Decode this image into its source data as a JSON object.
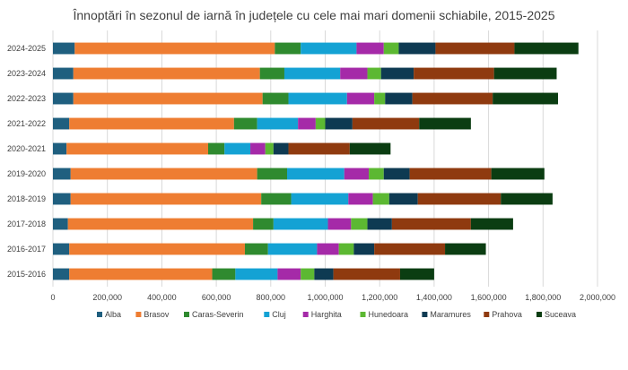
{
  "chart_data": {
    "type": "bar",
    "orientation": "horizontal",
    "stacked": true,
    "title": "Înnoptări în sezonul de iarnă în județele cu cele mai mari domenii schiabile, 2015-2025",
    "xlabel": "",
    "ylabel": "",
    "xlim": [
      0,
      2000000
    ],
    "xticks": [
      "0",
      "200,000",
      "400,000",
      "600,000",
      "800,000",
      "1,000,000",
      "1,200,000",
      "1,400,000",
      "1,600,000",
      "1,800,000",
      "2,000,000"
    ],
    "grid": "vertical",
    "legend_position": "bottom",
    "categories": [
      "2024-2025",
      "2023-2024",
      "2022-2023",
      "2021-2022",
      "2020-2021",
      "2019-2020",
      "2018-2019",
      "2017-2018",
      "2016-2017",
      "2015-2016"
    ],
    "series": [
      {
        "name": "Alba",
        "color": "#1f5f7f",
        "values": [
          80000,
          75000,
          75000,
          60000,
          50000,
          65000,
          65000,
          55000,
          60000,
          60000
        ]
      },
      {
        "name": "Brasov",
        "color": "#ee7d32",
        "values": [
          735000,
          685000,
          695000,
          605000,
          520000,
          685000,
          700000,
          680000,
          645000,
          525000
        ]
      },
      {
        "name": "Caras-Severin",
        "color": "#2f8a2f",
        "values": [
          95000,
          90000,
          95000,
          85000,
          60000,
          110000,
          110000,
          75000,
          85000,
          85000
        ]
      },
      {
        "name": "Cluj",
        "color": "#14a2d4",
        "values": [
          205000,
          205000,
          215000,
          150000,
          95000,
          210000,
          210000,
          200000,
          180000,
          155000
        ]
      },
      {
        "name": "Harghita",
        "color": "#a52aa8",
        "values": [
          100000,
          100000,
          100000,
          65000,
          55000,
          90000,
          90000,
          85000,
          80000,
          85000
        ]
      },
      {
        "name": "Hunedoara",
        "color": "#5cb832",
        "values": [
          55000,
          50000,
          40000,
          35000,
          30000,
          55000,
          60000,
          60000,
          55000,
          50000
        ]
      },
      {
        "name": "Maramures",
        "color": "#0e3a52",
        "values": [
          135000,
          120000,
          100000,
          100000,
          55000,
          95000,
          105000,
          90000,
          75000,
          70000
        ]
      },
      {
        "name": "Prahova",
        "color": "#8f3a0f",
        "values": [
          290000,
          295000,
          295000,
          245000,
          225000,
          300000,
          305000,
          290000,
          260000,
          245000
        ]
      },
      {
        "name": "Suceava",
        "color": "#0b3d12",
        "values": [
          235000,
          230000,
          240000,
          190000,
          150000,
          195000,
          190000,
          155000,
          150000,
          125000
        ]
      }
    ]
  }
}
